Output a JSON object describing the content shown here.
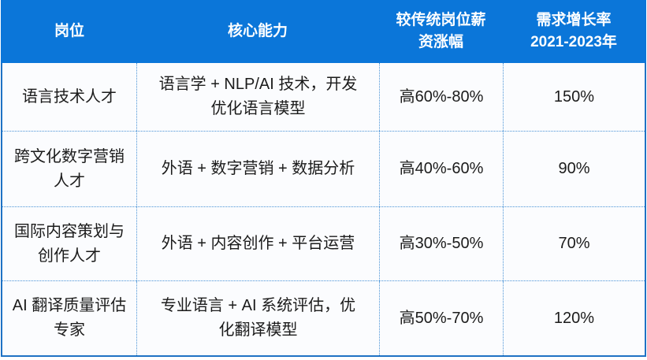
{
  "table": {
    "title_semantic": "language-talent-demand-table",
    "columns": [
      {
        "label": "岗位"
      },
      {
        "label": "核心能力"
      },
      {
        "label": "较传统岗位薪\n资涨幅"
      },
      {
        "label": "需求增长率\n2021-2023年"
      }
    ],
    "rows": [
      {
        "position": "语言技术人才",
        "skills": "语言学 + NLP/AI 技术，开发\n优化语言模型",
        "salary": "高60%-80%",
        "growth": "150%"
      },
      {
        "position": "跨文化数字营销\n人才",
        "skills": "外语 + 数字营销 + 数据分析",
        "salary": "高40%-60%",
        "growth": "90%"
      },
      {
        "position": "国际内容策划与\n创作人才",
        "skills": "外语 + 内容创作 + 平台运营",
        "salary": "高30%-50%",
        "growth": "70%"
      },
      {
        "position": "AI 翻译质量评估\n专家",
        "skills": "专业语言 + AI 系统评估，优\n化翻译模型",
        "salary": "高50%-70%",
        "growth": "120%"
      }
    ],
    "colors": {
      "header_bg": "#0b76d9",
      "header_text": "#ffffff",
      "outer_border": "#1f72c4",
      "inner_border": "#4a93d6",
      "cell_bg": "#fbfcfe",
      "body_text": "#1b1b1b"
    }
  }
}
